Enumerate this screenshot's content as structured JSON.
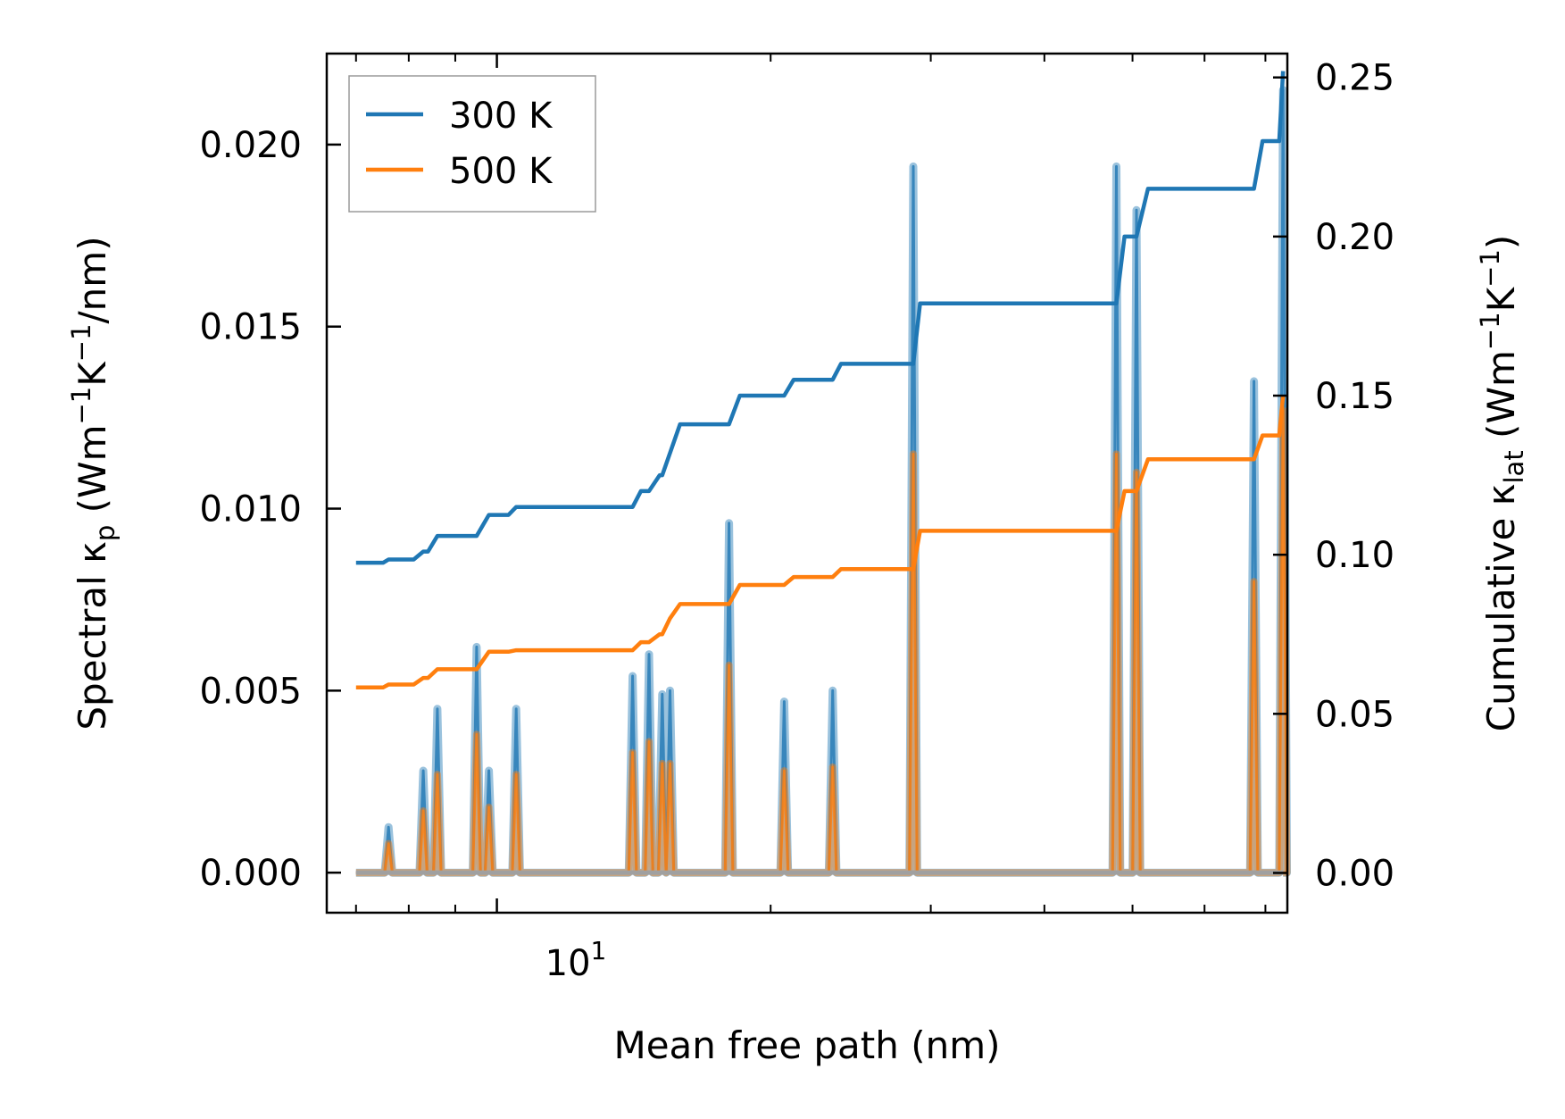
{
  "chart_data": {
    "type": "line",
    "title": "",
    "xlabel": "Mean free path (nm)",
    "ylabel_left": "Spectral κp (Wm−1K−1/nm)",
    "ylabel_left_parts": {
      "main": "Spectral κ",
      "sub": "p",
      "open": " (Wm",
      "sup1": "−1",
      "mid": "K",
      "sup2": "−1",
      "close": "/nm)"
    },
    "ylabel_right": "Cumulative κlat (Wm−1K−1)",
    "ylabel_right_parts": {
      "main": "Cumulative κ",
      "sub": "lat",
      "open": " (Wm",
      "sup1": "−1",
      "mid": "K",
      "sup2": "−1",
      "close": ")"
    },
    "xscale": "log",
    "xlim": [
      6.5,
      74
    ],
    "ylim_left": [
      -0.0011,
      0.0225
    ],
    "ylim_right": [
      -0.0125,
      0.2575
    ],
    "x_tick_major": [
      10
    ],
    "x_tick_major_base": "10",
    "x_tick_major_exp": "1",
    "y_ticks_left": [
      "0.000",
      "0.005",
      "0.010",
      "0.015",
      "0.020"
    ],
    "y_ticks_right": [
      "0.00",
      "0.05",
      "0.10",
      "0.15",
      "0.20",
      "0.25"
    ],
    "legend": {
      "position": "top-left",
      "entries": [
        "300 K",
        "500 K"
      ]
    },
    "colors": {
      "300K": "#1f77b4",
      "500K": "#ff7f0e"
    },
    "cumulative": {
      "300K": {
        "x": [
          7.0,
          7.5,
          7.6,
          8.1,
          8.3,
          8.4,
          8.6,
          9.5,
          9.8,
          10.3,
          10.5,
          14.1,
          14.4,
          14.7,
          15.1,
          15.2,
          15.5,
          15.9,
          18.0,
          18.5,
          20.7,
          21.2,
          23.4,
          23.9,
          28.7,
          29.2,
          48.0,
          49.0,
          50.5,
          52.0,
          68.0,
          69.5,
          72.5,
          73.2
        ],
        "y": [
          0.0975,
          0.0975,
          0.0985,
          0.0985,
          0.101,
          0.101,
          0.1059,
          0.1059,
          0.1125,
          0.1125,
          0.115,
          0.115,
          0.12,
          0.12,
          0.125,
          0.125,
          0.132,
          0.141,
          0.141,
          0.15,
          0.15,
          0.155,
          0.155,
          0.16,
          0.16,
          0.179,
          0.179,
          0.2,
          0.2,
          0.215,
          0.215,
          0.23,
          0.23,
          0.252
        ]
      },
      "500K": {
        "x": [
          7.0,
          7.5,
          7.6,
          8.1,
          8.3,
          8.4,
          8.6,
          9.5,
          9.8,
          10.3,
          10.5,
          14.1,
          14.4,
          14.7,
          15.1,
          15.2,
          15.5,
          15.9,
          18.0,
          18.5,
          20.7,
          21.2,
          23.4,
          23.9,
          28.7,
          29.2,
          48.0,
          49.0,
          50.5,
          52.0,
          68.0,
          69.5,
          72.5,
          73.2
        ],
        "y": [
          0.0583,
          0.0583,
          0.0592,
          0.0592,
          0.0613,
          0.0613,
          0.064,
          0.064,
          0.0695,
          0.0695,
          0.07,
          0.07,
          0.0725,
          0.0725,
          0.075,
          0.075,
          0.08,
          0.0845,
          0.0845,
          0.0905,
          0.0905,
          0.093,
          0.093,
          0.0955,
          0.0955,
          0.1075,
          0.1075,
          0.12,
          0.12,
          0.13,
          0.13,
          0.1375,
          0.1375,
          0.15
        ]
      }
    },
    "spectral": {
      "base_x": [
        7.0,
        73.2
      ],
      "half_width_log": 0.0042,
      "x": [
        7.6,
        8.3,
        8.6,
        9.5,
        9.8,
        10.5,
        14.1,
        14.7,
        15.2,
        15.5,
        18.0,
        20.7,
        23.4,
        28.7,
        48.0,
        50.5,
        68.0,
        73.2
      ],
      "300K": [
        0.00125,
        0.0028,
        0.0045,
        0.0062,
        0.0028,
        0.0045,
        0.0054,
        0.006,
        0.0049,
        0.005,
        0.0096,
        0.0047,
        0.005,
        0.0194,
        0.0194,
        0.0182,
        0.0135,
        0.0215
      ],
      "500K": [
        0.0008,
        0.0017,
        0.0027,
        0.0038,
        0.0018,
        0.0027,
        0.0033,
        0.0036,
        0.003,
        0.003,
        0.0057,
        0.0028,
        0.0029,
        0.0115,
        0.0115,
        0.011,
        0.008,
        0.0127
      ]
    }
  }
}
